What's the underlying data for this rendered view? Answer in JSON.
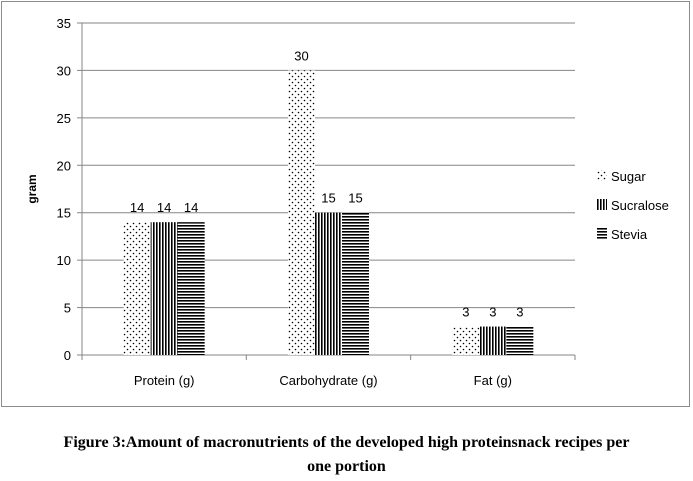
{
  "chart_data": {
    "type": "bar",
    "categories": [
      "Protein (g)",
      "Carbohydrate (g)",
      "Fat (g)"
    ],
    "series": [
      {
        "name": "Sugar",
        "values": [
          14,
          30,
          3
        ],
        "pattern": "dots"
      },
      {
        "name": "Sucralose",
        "values": [
          14,
          15,
          3
        ],
        "pattern": "vertical-lines"
      },
      {
        "name": "Stevia",
        "values": [
          14,
          15,
          3
        ],
        "pattern": "horizontal-lines"
      }
    ],
    "data_labels": [
      [
        "14",
        "30",
        "3"
      ],
      [
        "14",
        "15",
        "3"
      ],
      [
        "14",
        "15",
        "3"
      ]
    ],
    "ylabel": "gram",
    "xlabel": "",
    "ylim": [
      0,
      35
    ],
    "yticks": [
      0,
      5,
      10,
      15,
      20,
      25,
      30,
      35
    ],
    "grid": true,
    "legend_position": "right"
  },
  "caption": {
    "line1": "Figure 3:Amount of macronutrients of the developed high proteinsnack recipes per",
    "line2": "one portion"
  },
  "colors": {
    "bar_pattern": "#000000",
    "gridline": "#868686",
    "frame_border": "#8c8c8c",
    "text": "#000000"
  }
}
